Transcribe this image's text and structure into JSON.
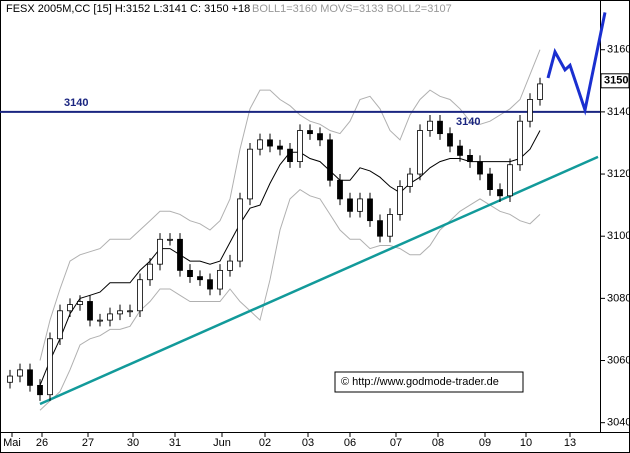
{
  "chart_data": {
    "type": "candlestick",
    "title": "FESX 2005M,CC [15] H:3152 L:3141 C: 3150 +18",
    "indicator_text": "BOLL1=3160 MOVS=3133 BOLL2=3107",
    "copyright": "© http://www.godmode-trader.de",
    "annotations": [
      "3140",
      "3140"
    ],
    "last_price": 3150,
    "hline": 3140,
    "xlim": [
      0,
      60
    ],
    "ylim": [
      3037,
      3176
    ],
    "yticks": [
      3040,
      3060,
      3080,
      3100,
      3120,
      3140,
      3160
    ],
    "xticks": [
      {
        "value": 1.2,
        "label": "Mai"
      },
      {
        "value": 4.2,
        "label": "26"
      },
      {
        "value": 8.8,
        "label": "27"
      },
      {
        "value": 13.3,
        "label": "30"
      },
      {
        "value": 17.5,
        "label": "31"
      },
      {
        "value": 22.2,
        "label": "Jun"
      },
      {
        "value": 26.5,
        "label": "02"
      },
      {
        "value": 30.8,
        "label": "03"
      },
      {
        "value": 35,
        "label": "06"
      },
      {
        "value": 39.6,
        "label": "07"
      },
      {
        "value": 43.8,
        "label": "08"
      },
      {
        "value": 48.5,
        "label": "09"
      },
      {
        "value": 52.6,
        "label": "10"
      },
      {
        "value": 57,
        "label": "13"
      }
    ],
    "x": [
      1,
      2,
      3,
      4,
      5,
      6,
      7,
      8,
      9,
      10,
      11,
      12,
      13,
      14,
      15,
      16,
      17,
      18,
      19,
      20,
      21,
      22,
      23,
      24,
      25,
      26,
      27,
      28,
      29,
      30,
      31,
      32,
      33,
      34,
      35,
      36,
      37,
      38,
      39,
      40,
      41,
      42,
      43,
      44,
      45,
      46,
      47,
      48,
      49,
      50,
      51,
      52,
      53,
      54
    ],
    "open": [
      3053,
      3055,
      3057,
      3052,
      3049,
      3067,
      3076,
      3078,
      3079,
      3073,
      3073,
      3075,
      3076,
      3076,
      3086,
      3091,
      3099,
      3099,
      3089,
      3087,
      3086,
      3083,
      3089,
      3092,
      3112,
      3128,
      3131,
      3129,
      3128,
      3124,
      3134,
      3133,
      3131,
      3118,
      3112,
      3108,
      3112,
      3105,
      3100,
      3107,
      3116,
      3120,
      3134,
      3137,
      3133,
      3129,
      3126,
      3124,
      3120,
      3115,
      3113,
      3123,
      3137,
      3144
    ],
    "high": [
      3057,
      3059,
      3059,
      3054,
      3069,
      3078,
      3080,
      3081,
      3081,
      3075,
      3077,
      3078,
      3078,
      3088,
      3093,
      3101,
      3101,
      3101,
      3091,
      3089,
      3088,
      3091,
      3094,
      3114,
      3130,
      3133,
      3133,
      3131,
      3130,
      3136,
      3136,
      3135,
      3133,
      3120,
      3114,
      3114,
      3114,
      3107,
      3109,
      3118,
      3122,
      3136,
      3139,
      3139,
      3135,
      3131,
      3128,
      3126,
      3122,
      3117,
      3125,
      3139,
      3146,
      3151
    ],
    "low": [
      3051,
      3053,
      3050,
      3047,
      3047,
      3065,
      3074,
      3076,
      3071,
      3071,
      3071,
      3073,
      3074,
      3074,
      3084,
      3089,
      3097,
      3087,
      3085,
      3084,
      3081,
      3081,
      3087,
      3090,
      3110,
      3126,
      3127,
      3126,
      3122,
      3122,
      3131,
      3129,
      3116,
      3110,
      3106,
      3106,
      3103,
      3098,
      3098,
      3105,
      3114,
      3118,
      3132,
      3131,
      3127,
      3124,
      3122,
      3118,
      3113,
      3111,
      3111,
      3121,
      3135,
      3142
    ],
    "close": [
      3055,
      3057,
      3052,
      3049,
      3067,
      3076,
      3078,
      3079,
      3073,
      3073,
      3075,
      3076,
      3076,
      3086,
      3091,
      3099,
      3099,
      3089,
      3087,
      3086,
      3083,
      3089,
      3092,
      3112,
      3128,
      3131,
      3129,
      3128,
      3124,
      3134,
      3133,
      3131,
      3118,
      3112,
      3108,
      3112,
      3105,
      3100,
      3107,
      3116,
      3120,
      3134,
      3137,
      3133,
      3129,
      3126,
      3124,
      3120,
      3115,
      3113,
      3123,
      3137,
      3144,
      3149
    ],
    "series": [
      {
        "color": "#b0b0b0",
        "values": [
          null,
          null,
          null,
          3060,
          3073,
          3083,
          3092,
          3094,
          3095,
          3096,
          3099,
          3099,
          3099,
          3102,
          3105,
          3108,
          3108,
          3107,
          3105,
          3104,
          3102,
          3105,
          3112,
          3128,
          3141,
          3147,
          3147,
          3144,
          3142,
          3139,
          3137,
          3136,
          3134,
          3133,
          3137,
          3144,
          3145,
          3141,
          3134,
          3131,
          3139,
          3144,
          3147,
          3145,
          3144,
          3141,
          3137,
          3136,
          3137,
          3139,
          3141,
          3144,
          3152,
          3160
        ]
      },
      {
        "color": "#000000",
        "values": [
          null,
          null,
          null,
          3052,
          3060,
          3067,
          3075,
          3080,
          3081,
          3082,
          3085,
          3085,
          3085,
          3089,
          3092,
          3096,
          3096,
          3094,
          3092,
          3092,
          3091,
          3092,
          3098,
          3104,
          3109,
          3110,
          3117,
          3123,
          3127,
          3127,
          3125,
          3124,
          3121,
          3118,
          3118,
          3122,
          3121,
          3119,
          3116,
          3114,
          3117,
          3119,
          3122,
          3124,
          3125,
          3125,
          3124,
          3124,
          3124,
          3124,
          3124,
          3125,
          3128,
          3134
        ]
      },
      {
        "color": "#b0b0b0",
        "values": [
          null,
          null,
          null,
          3044,
          3047,
          3050,
          3057,
          3065,
          3067,
          3068,
          3070,
          3070,
          3071,
          3076,
          3079,
          3083,
          3083,
          3081,
          3079,
          3079,
          3079,
          3079,
          3083,
          3079,
          3076,
          3073,
          3086,
          3102,
          3112,
          3115,
          3113,
          3112,
          3107,
          3102,
          3099,
          3099,
          3096,
          3097,
          3097,
          3096,
          3094,
          3094,
          3097,
          3102,
          3105,
          3108,
          3110,
          3112,
          3110,
          3108,
          3107,
          3105,
          3104,
          3107
        ]
      }
    ],
    "trendline": {
      "color": "#129a9a",
      "x": [
        4,
        59.8
      ],
      "values": [
        3046,
        3125.5
      ]
    },
    "projection": {
      "color": "#1a2fd0",
      "x": [
        54.8,
        55.5,
        56.5,
        57,
        58.5,
        60.5
      ],
      "values": [
        3150.9,
        3159.3,
        3153.5,
        3155,
        3140.6,
        3172
      ]
    }
  }
}
